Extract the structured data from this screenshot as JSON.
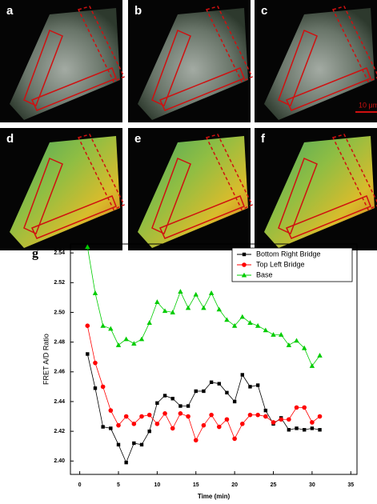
{
  "panels": [
    {
      "label": "a"
    },
    {
      "label": "b"
    },
    {
      "label": "c"
    },
    {
      "label": "d"
    },
    {
      "label": "e"
    },
    {
      "label": "f"
    }
  ],
  "scale_bar": "10 μm",
  "chart_data": {
    "type": "line",
    "label": "g",
    "x_label": "Time (min)",
    "y_label": "FRET A/D Ratio",
    "x": [
      1,
      2,
      3,
      4,
      5,
      6,
      7,
      8,
      9,
      10,
      11,
      12,
      13,
      14,
      15,
      16,
      17,
      18,
      19,
      20,
      21,
      22,
      23,
      24,
      25,
      26,
      27,
      28,
      29,
      30,
      31
    ],
    "series": [
      {
        "name": "Bottom Right Bridge",
        "color": "#000000",
        "marker": "square",
        "values": [
          2.472,
          2.449,
          2.423,
          2.422,
          2.411,
          2.399,
          2.412,
          2.411,
          2.42,
          2.439,
          2.444,
          2.442,
          2.437,
          2.437,
          2.447,
          2.447,
          2.453,
          2.452,
          2.446,
          2.44,
          2.458,
          2.45,
          2.451,
          2.434,
          2.425,
          2.429,
          2.421,
          2.422,
          2.421,
          2.422,
          2.421
        ]
      },
      {
        "name": "Top Left Bridge",
        "color": "#ff0000",
        "marker": "circle",
        "values": [
          2.491,
          2.466,
          2.45,
          2.434,
          2.424,
          2.43,
          2.425,
          2.43,
          2.431,
          2.425,
          2.432,
          2.422,
          2.432,
          2.43,
          2.414,
          2.424,
          2.431,
          2.423,
          2.428,
          2.415,
          2.425,
          2.431,
          2.431,
          2.43,
          2.426,
          2.428,
          2.428,
          2.436,
          2.436,
          2.426,
          2.43
        ]
      },
      {
        "name": "Base",
        "color": "#00cc00",
        "marker": "triangle",
        "values": [
          2.544,
          2.513,
          2.491,
          2.489,
          2.478,
          2.482,
          2.479,
          2.482,
          2.493,
          2.507,
          2.501,
          2.5,
          2.514,
          2.503,
          2.512,
          2.503,
          2.513,
          2.502,
          2.495,
          2.491,
          2.497,
          2.493,
          2.491,
          2.488,
          2.485,
          2.485,
          2.478,
          2.481,
          2.476,
          2.464,
          2.471
        ]
      }
    ],
    "xlim": [
      -1.2,
      35.8
    ],
    "xticks": [
      0,
      5,
      10,
      15,
      20,
      25,
      30,
      35
    ],
    "ylim": [
      2.391,
      2.546
    ],
    "yticks": [
      {
        "value": 2.4,
        "label": "2.40"
      },
      2.42,
      2.44,
      2.46,
      2.48,
      {
        "value": 2.5,
        "label": "2.50"
      },
      2.52,
      2.54
    ],
    "legend": "upper-right",
    "grid": false
  }
}
